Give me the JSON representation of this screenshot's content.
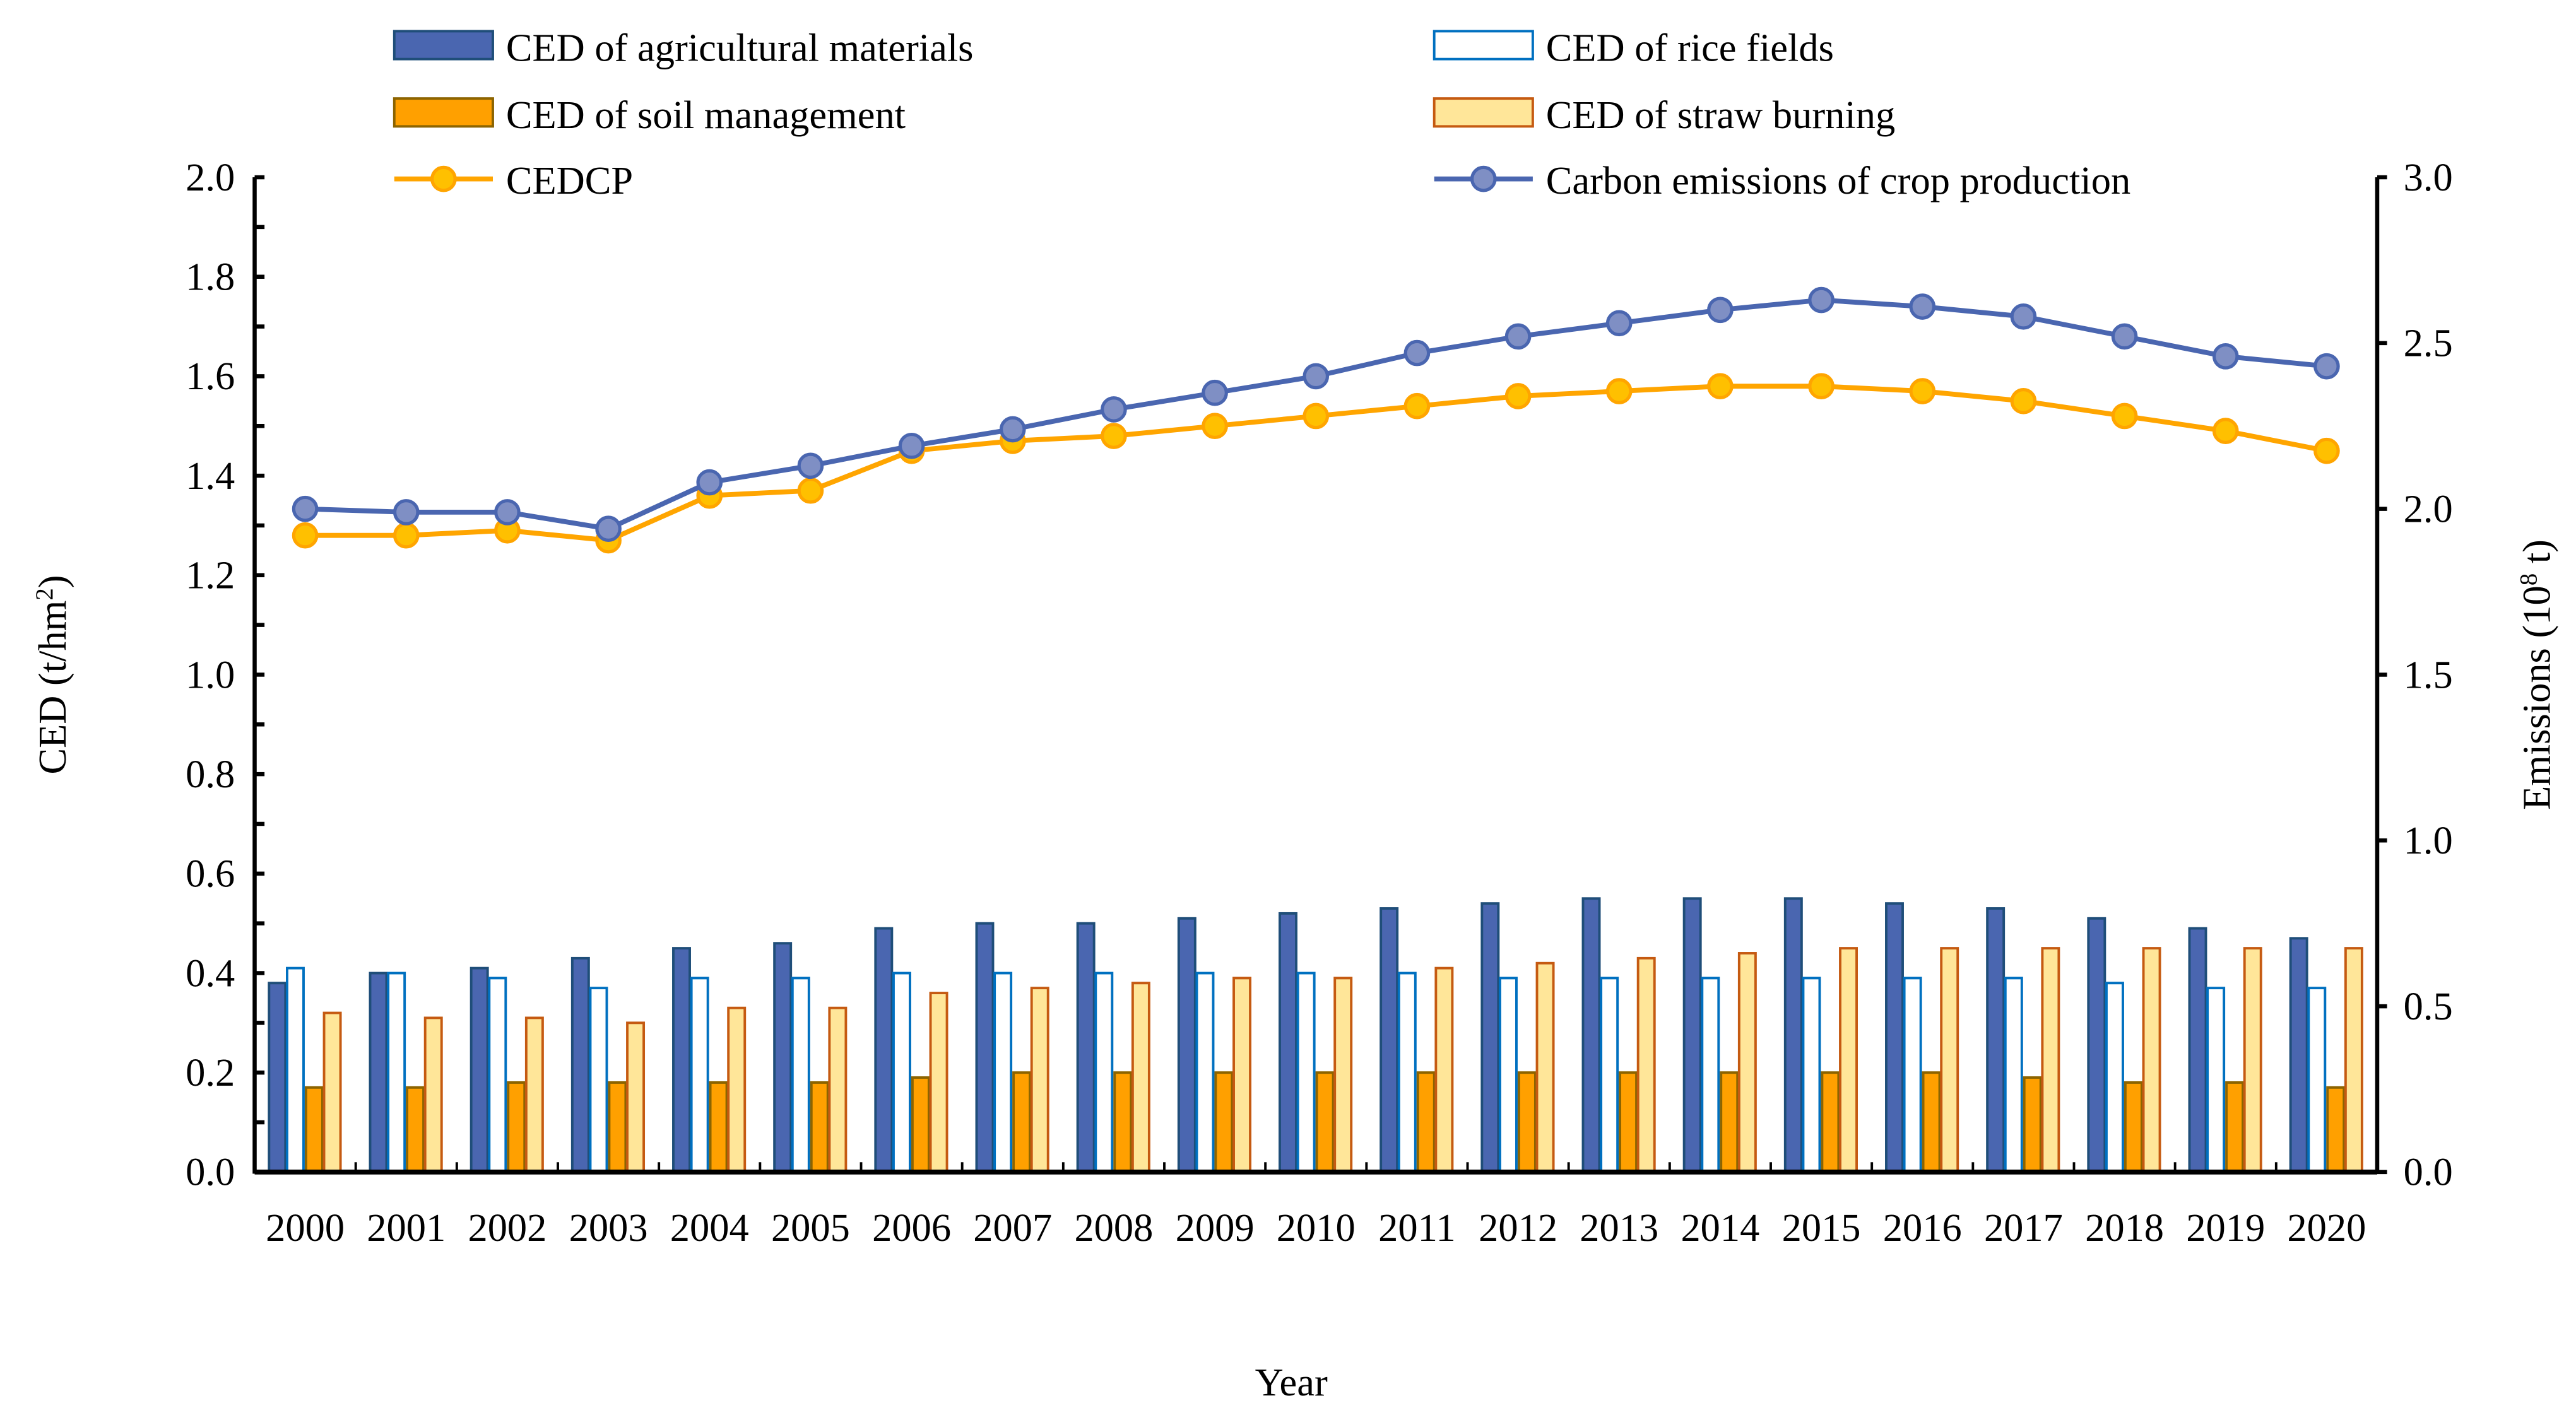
{
  "chart_data": {
    "type": "bar+line",
    "xlabel": "Year",
    "ylabel_left": "CED (t/hm",
    "ylabel_left_sup": "2",
    "ylabel_left_end": ")",
    "ylabel_right": "Emissions (10",
    "ylabel_right_sup": "8",
    "ylabel_right_end": " t)",
    "ylim_left": [
      0,
      2.0
    ],
    "ylim_right": [
      0,
      3.0
    ],
    "yticks_left": [
      "0.0",
      "0.2",
      "0.4",
      "0.6",
      "0.8",
      "1.0",
      "1.2",
      "1.4",
      "1.6",
      "1.8",
      "2.0"
    ],
    "yticks_right": [
      "0.0",
      "0.5",
      "1.0",
      "1.5",
      "2.0",
      "2.5",
      "3.0"
    ],
    "legend_placement": "top",
    "categories": [
      "2000",
      "2001",
      "2002",
      "2003",
      "2004",
      "2005",
      "2006",
      "2007",
      "2008",
      "2009",
      "2010",
      "2011",
      "2012",
      "2013",
      "2014",
      "2015",
      "2016",
      "2017",
      "2018",
      "2019",
      "2020"
    ],
    "bar_series": [
      {
        "name": "CED of agricultural materials",
        "fill": "#4a66b0",
        "stroke": "#1f4e79",
        "values": [
          0.38,
          0.4,
          0.41,
          0.43,
          0.45,
          0.46,
          0.49,
          0.5,
          0.5,
          0.51,
          0.52,
          0.53,
          0.54,
          0.55,
          0.55,
          0.55,
          0.54,
          0.53,
          0.51,
          0.49,
          0.47
        ]
      },
      {
        "name": "CED of rice fields",
        "fill": "#ffffff",
        "stroke": "#0070c0",
        "values": [
          0.41,
          0.4,
          0.39,
          0.37,
          0.39,
          0.39,
          0.4,
          0.4,
          0.4,
          0.4,
          0.4,
          0.4,
          0.39,
          0.39,
          0.39,
          0.39,
          0.39,
          0.39,
          0.38,
          0.37,
          0.37
        ]
      },
      {
        "name": "CED of soil management",
        "fill": "#ffa000",
        "stroke": "#8c6400",
        "values": [
          0.17,
          0.17,
          0.18,
          0.18,
          0.18,
          0.18,
          0.19,
          0.2,
          0.2,
          0.2,
          0.2,
          0.2,
          0.2,
          0.2,
          0.2,
          0.2,
          0.2,
          0.19,
          0.18,
          0.18,
          0.17
        ]
      },
      {
        "name": "CED of straw burning",
        "fill": "#ffe699",
        "stroke": "#c55a11",
        "values": [
          0.32,
          0.31,
          0.31,
          0.3,
          0.33,
          0.33,
          0.36,
          0.37,
          0.38,
          0.39,
          0.39,
          0.41,
          0.42,
          0.43,
          0.44,
          0.45,
          0.45,
          0.45,
          0.45,
          0.45,
          0.45
        ]
      }
    ],
    "line_series": [
      {
        "name": "CEDCP",
        "axis": "left",
        "color": "#ffa500",
        "marker": "#ffc000",
        "values": [
          1.28,
          1.28,
          1.29,
          1.27,
          1.36,
          1.37,
          1.45,
          1.47,
          1.48,
          1.5,
          1.52,
          1.54,
          1.56,
          1.57,
          1.58,
          1.58,
          1.57,
          1.55,
          1.52,
          1.49,
          1.45
        ]
      },
      {
        "name": "Carbon emissions of crop production",
        "axis": "right",
        "color": "#4a66b0",
        "marker": "#7f8fc4",
        "values": [
          2.0,
          1.99,
          1.99,
          1.94,
          2.08,
          2.13,
          2.19,
          2.24,
          2.3,
          2.35,
          2.4,
          2.47,
          2.52,
          2.56,
          2.6,
          2.63,
          2.61,
          2.58,
          2.52,
          2.46,
          2.43
        ]
      }
    ]
  }
}
